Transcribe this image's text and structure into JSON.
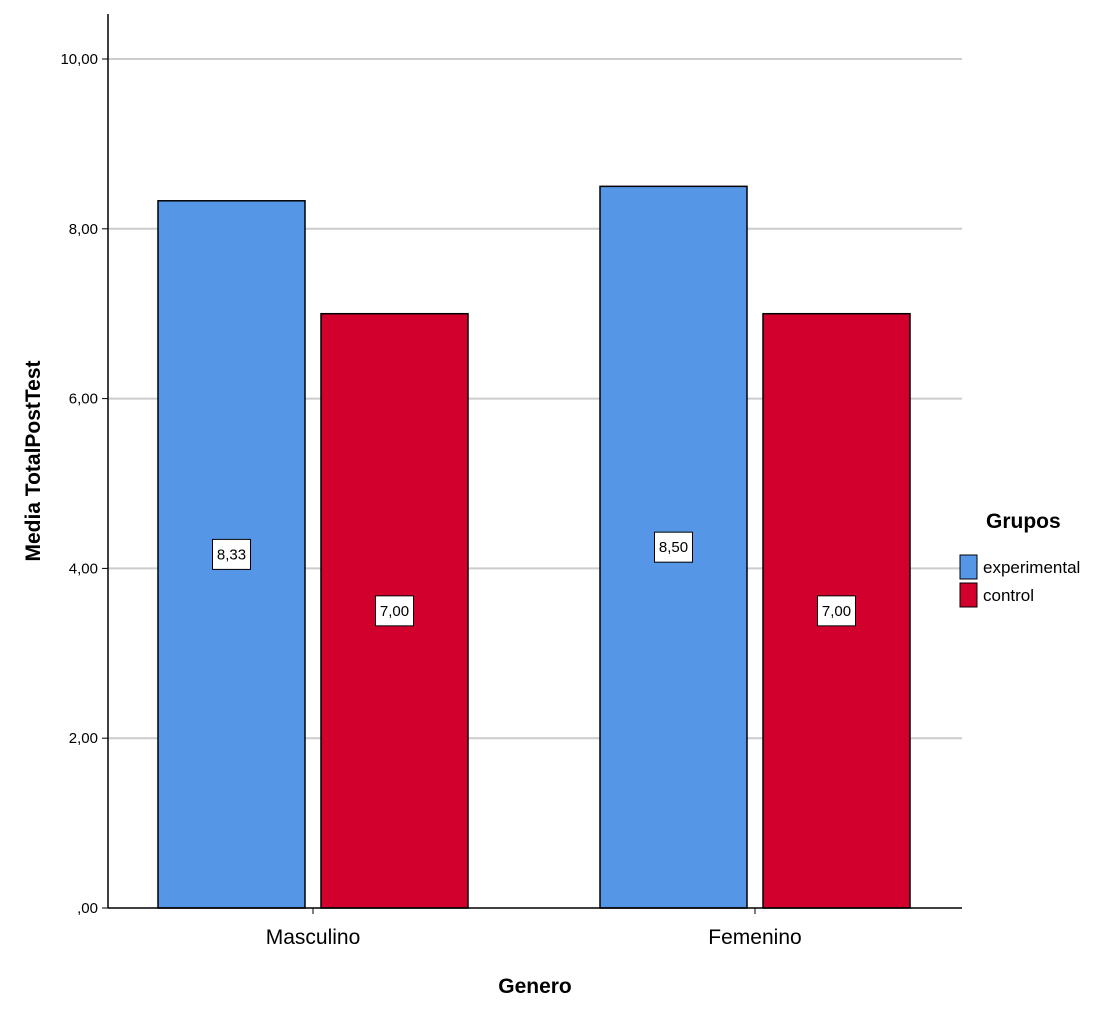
{
  "chart_data": {
    "type": "bar",
    "categories": [
      "Masculino",
      "Femenino"
    ],
    "series": [
      {
        "name": "experimental",
        "values": [
          8.33,
          8.5
        ],
        "labels": [
          "8,33",
          "8,50"
        ],
        "color": "#5596e6"
      },
      {
        "name": "control",
        "values": [
          7.0,
          7.0
        ],
        "labels": [
          "7,00",
          "7,00"
        ],
        "color": "#d2002d"
      }
    ],
    "xlabel": "Genero",
    "ylabel": "Media TotalPostTest",
    "ylim": [
      0,
      10
    ],
    "yticks": [
      0,
      2,
      4,
      6,
      8,
      10
    ],
    "ytick_labels": [
      ",00",
      "2,00",
      "4,00",
      "6,00",
      "8,00",
      "10,00"
    ],
    "grid": true,
    "gridline_color": "#cccccc",
    "legend": {
      "title": "Grupos",
      "placement": "right"
    }
  }
}
